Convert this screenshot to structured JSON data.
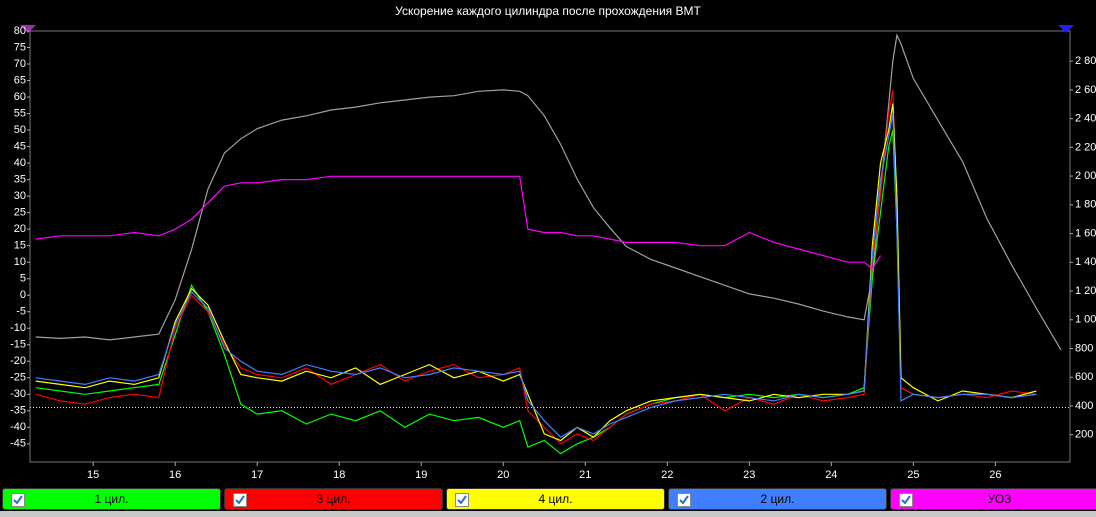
{
  "chart_data": {
    "type": "line",
    "title": "Ускорение каждого цилиндра после прохождения ВМТ",
    "x": [
      14.3,
      14.6,
      14.9,
      15.2,
      15.5,
      15.8,
      16.0,
      16.2,
      16.4,
      16.6,
      16.8,
      17.0,
      17.3,
      17.6,
      17.9,
      18.2,
      18.5,
      18.8,
      19.1,
      19.4,
      19.7,
      20.0,
      20.2,
      20.3,
      20.5,
      20.7,
      20.9,
      21.1,
      21.3,
      21.5,
      21.8,
      22.1,
      22.4,
      22.7,
      23.0,
      23.3,
      23.6,
      23.9,
      24.2,
      24.4,
      24.5,
      24.6,
      24.7,
      24.75,
      24.8,
      24.85,
      25.0,
      25.3,
      25.6,
      25.9,
      26.2,
      26.5,
      26.8
    ],
    "series": [
      {
        "name": "1 цил.",
        "color": "#00ff00",
        "values": [
          -28,
          -29,
          -30,
          -29,
          -28,
          -27,
          -12,
          3,
          -5,
          -18,
          -33,
          -36,
          -35,
          -39,
          -36,
          -38,
          -35,
          -40,
          -36,
          -38,
          -37,
          -40,
          -38,
          -46,
          -44,
          -48,
          -45,
          -43,
          -40,
          -36,
          -33,
          -31,
          -30,
          -31,
          -30,
          -31,
          -30,
          -31,
          -30,
          -28,
          5,
          25,
          45,
          50,
          20,
          -28,
          -30,
          -31,
          -30,
          -30,
          -31,
          -30,
          null
        ]
      },
      {
        "name": "3 цил.",
        "color": "#ff0000",
        "values": [
          -30,
          -32,
          -33,
          -31,
          -30,
          -31,
          -10,
          0,
          -5,
          -15,
          -22,
          -24,
          -25,
          -22,
          -27,
          -24,
          -21,
          -26,
          -23,
          -21,
          -25,
          -24,
          -22,
          -35,
          -40,
          -45,
          -42,
          -44,
          -40,
          -36,
          -33,
          -32,
          -30,
          -35,
          -31,
          -33,
          -30,
          -32,
          -31,
          -30,
          10,
          30,
          55,
          62,
          25,
          -28,
          -30,
          -31,
          -30,
          -31,
          -29,
          -30,
          null
        ]
      },
      {
        "name": "4 цил.",
        "color": "#ffff00",
        "values": [
          -26,
          -27,
          -28,
          -26,
          -27,
          -25,
          -8,
          2,
          -3,
          -14,
          -24,
          -25,
          -26,
          -23,
          -25,
          -22,
          -27,
          -24,
          -21,
          -25,
          -23,
          -26,
          -24,
          -30,
          -42,
          -44,
          -40,
          -43,
          -38,
          -35,
          -32,
          -31,
          -30,
          -31,
          -32,
          -30,
          -31,
          -30,
          -30,
          -29,
          15,
          40,
          50,
          58,
          30,
          -25,
          -28,
          -32,
          -29,
          -30,
          -31,
          -29,
          null
        ]
      },
      {
        "name": "2 цил.",
        "color": "#3f7fff",
        "values": [
          -25,
          -26,
          -27,
          -25,
          -26,
          -24,
          -9,
          1,
          -4,
          -16,
          -20,
          -23,
          -24,
          -21,
          -23,
          -24,
          -22,
          -25,
          -24,
          -22,
          -23,
          -24,
          -23,
          -32,
          -38,
          -43,
          -40,
          -42,
          -39,
          -37,
          -34,
          -32,
          -31,
          -30,
          -31,
          -32,
          -30,
          -31,
          -30,
          -29,
          12,
          35,
          48,
          55,
          20,
          -32,
          -30,
          -31,
          -30,
          -30,
          -31,
          -30,
          null
        ]
      },
      {
        "name": "УОЗ",
        "color": "#ff00ff",
        "values": [
          17,
          18,
          18,
          18,
          19,
          18,
          20,
          23,
          28,
          33,
          34,
          34,
          35,
          35,
          36,
          36,
          36,
          36,
          36,
          36,
          36,
          36,
          36,
          20,
          19,
          19,
          18,
          18,
          17,
          16,
          16,
          16,
          15,
          15,
          19,
          16,
          14,
          12,
          10,
          10,
          8,
          12,
          null,
          null,
          null,
          null,
          null,
          null,
          null,
          null,
          null,
          null,
          null
        ]
      },
      {
        "color": "#a0a0a0",
        "axis": "y2",
        "values": [
          880,
          870,
          880,
          860,
          880,
          900,
          1140,
          1490,
          1910,
          2160,
          2260,
          2330,
          2390,
          2420,
          2460,
          2480,
          2510,
          2530,
          2550,
          2560,
          2590,
          2600,
          2590,
          2560,
          2420,
          2220,
          1980,
          1780,
          1640,
          1510,
          1420,
          1360,
          1300,
          1240,
          1180,
          1150,
          1110,
          1060,
          1020,
          1000,
          1300,
          1900,
          2500,
          2800,
          2980,
          2920,
          2680,
          2390,
          2100,
          1700,
          1380,
          1080,
          790
        ]
      }
    ],
    "xlim": [
      14.23,
      26.91
    ],
    "xticks": [
      15,
      16,
      17,
      18,
      19,
      20,
      21,
      22,
      23,
      24,
      25,
      26
    ],
    "ylim": [
      -50.5,
      80
    ],
    "yticks": [
      -45,
      -40,
      -35,
      -30,
      -25,
      -20,
      -15,
      -10,
      -5,
      0,
      5,
      10,
      15,
      20,
      25,
      30,
      35,
      40,
      45,
      50,
      55,
      60,
      65,
      70,
      75,
      80
    ],
    "y2lim": [
      10,
      3010
    ],
    "y2ticks": [
      200,
      400,
      600,
      800,
      {
        "value": 1000,
        "label": "1 000"
      },
      {
        "value": 1200,
        "label": "1 200"
      },
      {
        "value": 1400,
        "label": "1 400"
      },
      {
        "value": 1600,
        "label": "1 600"
      },
      {
        "value": 1800,
        "label": "1 800"
      },
      {
        "value": 2000,
        "label": "2 000"
      },
      {
        "value": 2200,
        "label": "2 200"
      },
      {
        "value": 2400,
        "label": "2 400"
      },
      {
        "value": 2600,
        "label": "2 600"
      },
      {
        "value": 2800,
        "label": "2 800"
      }
    ],
    "reference_line": -34,
    "grid": false
  }
}
